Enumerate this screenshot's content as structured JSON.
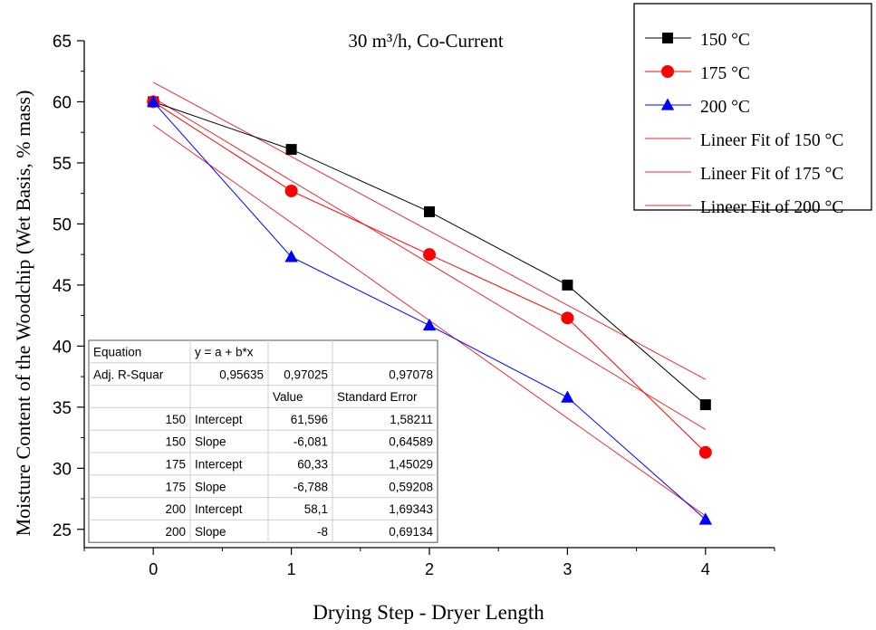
{
  "chart_data": {
    "type": "line",
    "title": "30 m³/h, Co-Current",
    "xlabel": "Drying Step - Dryer Length",
    "ylabel": "Moisture Content of the Woodchip (Wet Basis, % mass)",
    "xlim": [
      -0.5,
      4.5
    ],
    "ylim": [
      23.5,
      65
    ],
    "x_ticks": [
      0,
      1,
      2,
      3,
      4
    ],
    "y_ticks": [
      25,
      30,
      35,
      40,
      45,
      50,
      55,
      60,
      65
    ],
    "x": [
      0,
      1,
      2,
      3,
      4
    ],
    "series": [
      {
        "name": "150 °C",
        "values": [
          60.0,
          56.1,
          51.0,
          45.0,
          35.2
        ],
        "color": "#000000",
        "marker": "square"
      },
      {
        "name": "175 °C",
        "values": [
          60.0,
          52.7,
          47.5,
          42.3,
          31.3
        ],
        "color": "#ff0000",
        "marker": "circle"
      },
      {
        "name": "200 °C",
        "values": [
          60.0,
          47.3,
          41.7,
          35.8,
          25.8
        ],
        "color": "#0000ff",
        "marker": "triangle"
      }
    ],
    "fits": [
      {
        "name": "Lineer Fit of 150 °C",
        "intercept": 61.596,
        "slope": -6.081,
        "color": "#e03030"
      },
      {
        "name": "Lineer Fit of 175 °C",
        "intercept": 60.33,
        "slope": -6.788,
        "color": "#e03030"
      },
      {
        "name": "Lineer Fit of 200 °C",
        "intercept": 58.1,
        "slope": -8,
        "color": "#e03030"
      }
    ],
    "legend_position": "top-right, outside plot",
    "grid": false,
    "fit_table": {
      "rows": [
        [
          "Equation",
          "y = a + b*x",
          "",
          ""
        ],
        [
          "Adj. R-Squar",
          "0,95635",
          "0,97025",
          "0,97078"
        ],
        [
          "",
          "",
          "Value",
          "Standard Error"
        ],
        [
          "150",
          "Intercept",
          "61,596",
          "1,58211"
        ],
        [
          "150",
          "Slope",
          "-6,081",
          "0,64589"
        ],
        [
          "175",
          "Intercept",
          "60,33",
          "1,45029"
        ],
        [
          "175",
          "Slope",
          "-6,788",
          "0,59208"
        ],
        [
          "200",
          "Intercept",
          "58,1",
          "1,69343"
        ],
        [
          "200",
          "Slope",
          "-8",
          "0,69134"
        ]
      ]
    }
  }
}
